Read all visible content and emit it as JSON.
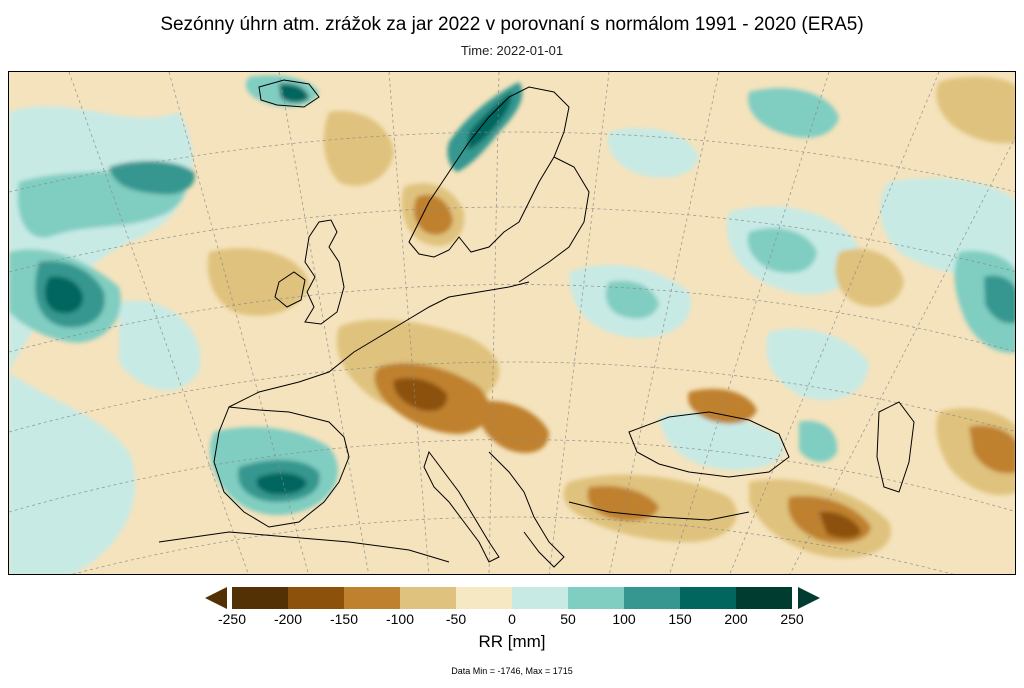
{
  "title": "Sezónny úhrn atm. zrážok za jar 2022 v porovnaní s normálom 1991 - 2020 (ERA5)",
  "subtitle": "Time: 2022-01-01",
  "colorbar": {
    "ticks": [
      "-250",
      "-200",
      "-150",
      "-100",
      "-50",
      "0",
      "50",
      "100",
      "150",
      "200",
      "250"
    ],
    "colors": [
      "#543005",
      "#8c510a",
      "#bf812d",
      "#dfc27d",
      "#f6e8c3",
      "#c7eae5",
      "#80cdc1",
      "#35978f",
      "#01665e",
      "#003c30"
    ],
    "under_color": "#543005",
    "over_color": "#003c30",
    "label": "RR [mm]"
  },
  "stats": "Data Min = -1746, Max = 1715",
  "map": {
    "background_color": "#f5e3bd",
    "coastline_color": "#000000",
    "graticule_color": "#888888"
  }
}
